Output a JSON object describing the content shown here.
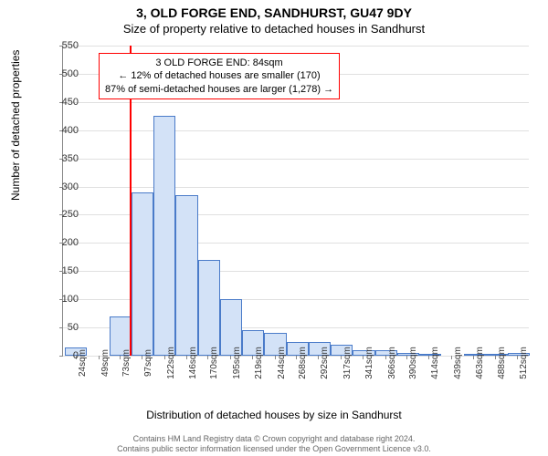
{
  "title_main": "3, OLD FORGE END, SANDHURST, GU47 9DY",
  "title_sub": "Size of property relative to detached houses in Sandhurst",
  "ylabel": "Number of detached properties",
  "xlabel": "Distribution of detached houses by size in Sandhurst",
  "footer1": "Contains HM Land Registry data © Crown copyright and database right 2024.",
  "footer2": "Contains public sector information licensed under the Open Government Licence v3.0.",
  "annotation": {
    "line1": "3 OLD FORGE END: 84sqm",
    "line2": "← 12% of detached houses are smaller (170)",
    "line3": "87% of semi-detached houses are larger (1,278) →"
  },
  "chart": {
    "type": "histogram",
    "bar_fill": "#d3e2f7",
    "bar_border": "#4a7bc9",
    "grid_color": "#e0e0e0",
    "axis_color": "#888888",
    "background": "#ffffff",
    "refline_color": "#ff0000",
    "refline_x": 84,
    "ylim": [
      0,
      550
    ],
    "yticks": [
      0,
      50,
      100,
      150,
      200,
      250,
      300,
      350,
      400,
      450,
      500,
      550
    ],
    "xrange": [
      10,
      525
    ],
    "xticks": [
      24,
      49,
      73,
      97,
      122,
      146,
      170,
      195,
      219,
      244,
      268,
      292,
      317,
      341,
      366,
      390,
      414,
      439,
      463,
      488,
      512
    ],
    "bin_width": 24.5,
    "bars": [
      {
        "start": 12,
        "count": 15
      },
      {
        "start": 36.5,
        "count": 0
      },
      {
        "start": 61,
        "count": 70
      },
      {
        "start": 85.5,
        "count": 290
      },
      {
        "start": 110,
        "count": 425
      },
      {
        "start": 134.5,
        "count": 285
      },
      {
        "start": 159,
        "count": 170
      },
      {
        "start": 183.5,
        "count": 100
      },
      {
        "start": 208,
        "count": 45
      },
      {
        "start": 232.5,
        "count": 40
      },
      {
        "start": 257,
        "count": 25
      },
      {
        "start": 281.5,
        "count": 25
      },
      {
        "start": 306,
        "count": 20
      },
      {
        "start": 330.5,
        "count": 10
      },
      {
        "start": 355,
        "count": 10
      },
      {
        "start": 379.5,
        "count": 5
      },
      {
        "start": 404,
        "count": 2
      },
      {
        "start": 428.5,
        "count": 0
      },
      {
        "start": 453,
        "count": 2
      },
      {
        "start": 477.5,
        "count": 2
      },
      {
        "start": 502,
        "count": 5
      }
    ]
  }
}
